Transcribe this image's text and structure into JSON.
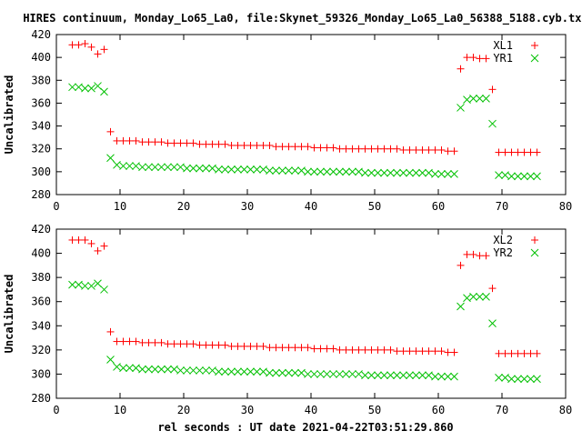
{
  "title": "HIRES continuum, Monday_Lo65_La0, file:Skynet_59326_Monday_Lo65_La0_56388_5188.cyb.txt",
  "xlabel": "rel seconds : UT date 2021-04-22T03:51:29.860",
  "colors": {
    "red": "#ff0000",
    "green": "#00c000",
    "axis": "#000000"
  },
  "chart_data": [
    {
      "type": "scatter",
      "ylabel": "Uncalibrated",
      "xlim": [
        0,
        80
      ],
      "ylim": [
        280,
        420
      ],
      "xticks": [
        0,
        10,
        20,
        30,
        40,
        50,
        60,
        70,
        80
      ],
      "yticks": [
        280,
        300,
        320,
        340,
        360,
        380,
        400,
        420
      ],
      "legend_position": "top-right",
      "series": [
        {
          "name": "XL1",
          "marker": "plus",
          "color": "#ff0000",
          "x": [
            2.5,
            3.5,
            4.5,
            5.5,
            6.5,
            7.5,
            8.5,
            9.5,
            10.5,
            11.5,
            12.5,
            13.5,
            14.5,
            15.5,
            16.5,
            17.5,
            18.5,
            19.5,
            20.5,
            21.5,
            22.5,
            23.5,
            24.5,
            25.5,
            26.5,
            27.5,
            28.5,
            29.5,
            30.5,
            31.5,
            32.5,
            33.5,
            34.5,
            35.5,
            36.5,
            37.5,
            38.5,
            39.5,
            40.5,
            41.5,
            42.5,
            43.5,
            44.5,
            45.5,
            46.5,
            47.5,
            48.5,
            49.5,
            50.5,
            51.5,
            52.5,
            53.5,
            54.5,
            55.5,
            56.5,
            57.5,
            58.5,
            59.5,
            60.5,
            61.5,
            62.5,
            63.5,
            64.5,
            65.5,
            66.5,
            67.5,
            68.5,
            69.5,
            70.5,
            71.5,
            72.5,
            73.5,
            74.5,
            75.5
          ],
          "y": [
            411,
            411,
            412,
            409,
            403,
            407,
            335,
            327,
            327,
            327,
            327,
            326,
            326,
            326,
            326,
            325,
            325,
            325,
            325,
            325,
            324,
            324,
            324,
            324,
            324,
            323,
            323,
            323,
            323,
            323,
            323,
            323,
            322,
            322,
            322,
            322,
            322,
            322,
            321,
            321,
            321,
            321,
            320,
            320,
            320,
            320,
            320,
            320,
            320,
            320,
            320,
            320,
            319,
            319,
            319,
            319,
            319,
            319,
            319,
            318,
            318,
            390,
            400,
            400,
            399,
            399,
            372,
            317,
            317,
            317,
            317,
            317,
            317,
            317
          ]
        },
        {
          "name": "YR1",
          "marker": "cross",
          "color": "#00c000",
          "x": [
            2.5,
            3.5,
            4.5,
            5.5,
            6.5,
            7.5,
            8.5,
            9.5,
            10.5,
            11.5,
            12.5,
            13.5,
            14.5,
            15.5,
            16.5,
            17.5,
            18.5,
            19.5,
            20.5,
            21.5,
            22.5,
            23.5,
            24.5,
            25.5,
            26.5,
            27.5,
            28.5,
            29.5,
            30.5,
            31.5,
            32.5,
            33.5,
            34.5,
            35.5,
            36.5,
            37.5,
            38.5,
            39.5,
            40.5,
            41.5,
            42.5,
            43.5,
            44.5,
            45.5,
            46.5,
            47.5,
            48.5,
            49.5,
            50.5,
            51.5,
            52.5,
            53.5,
            54.5,
            55.5,
            56.5,
            57.5,
            58.5,
            59.5,
            60.5,
            61.5,
            62.5,
            63.5,
            64.5,
            65.5,
            66.5,
            67.5,
            68.5,
            69.5,
            70.5,
            71.5,
            72.5,
            73.5,
            74.5,
            75.5
          ],
          "y": [
            374,
            374,
            373,
            373,
            375,
            370,
            312,
            306,
            305,
            305,
            305,
            304,
            304,
            304,
            304,
            304,
            304,
            304,
            303,
            303,
            303,
            303,
            303,
            302,
            302,
            302,
            302,
            302,
            302,
            302,
            302,
            301,
            301,
            301,
            301,
            301,
            301,
            300,
            300,
            300,
            300,
            300,
            300,
            300,
            300,
            300,
            299,
            299,
            299,
            299,
            299,
            299,
            299,
            299,
            299,
            299,
            299,
            298,
            298,
            298,
            298,
            356,
            363,
            364,
            364,
            364,
            342,
            297,
            297,
            296,
            296,
            296,
            296,
            296
          ]
        }
      ]
    },
    {
      "type": "scatter",
      "ylabel": "Uncalibrated",
      "xlim": [
        0,
        80
      ],
      "ylim": [
        280,
        420
      ],
      "xticks": [
        0,
        10,
        20,
        30,
        40,
        50,
        60,
        70,
        80
      ],
      "yticks": [
        280,
        300,
        320,
        340,
        360,
        380,
        400,
        420
      ],
      "legend_position": "top-right",
      "series": [
        {
          "name": "XL2",
          "marker": "plus",
          "color": "#ff0000",
          "x": [
            2.5,
            3.5,
            4.5,
            5.5,
            6.5,
            7.5,
            8.5,
            9.5,
            10.5,
            11.5,
            12.5,
            13.5,
            14.5,
            15.5,
            16.5,
            17.5,
            18.5,
            19.5,
            20.5,
            21.5,
            22.5,
            23.5,
            24.5,
            25.5,
            26.5,
            27.5,
            28.5,
            29.5,
            30.5,
            31.5,
            32.5,
            33.5,
            34.5,
            35.5,
            36.5,
            37.5,
            38.5,
            39.5,
            40.5,
            41.5,
            42.5,
            43.5,
            44.5,
            45.5,
            46.5,
            47.5,
            48.5,
            49.5,
            50.5,
            51.5,
            52.5,
            53.5,
            54.5,
            55.5,
            56.5,
            57.5,
            58.5,
            59.5,
            60.5,
            61.5,
            62.5,
            63.5,
            64.5,
            65.5,
            66.5,
            67.5,
            68.5,
            69.5,
            70.5,
            71.5,
            72.5,
            73.5,
            74.5,
            75.5
          ],
          "y": [
            411,
            411,
            411,
            408,
            402,
            406,
            335,
            327,
            327,
            327,
            327,
            326,
            326,
            326,
            326,
            325,
            325,
            325,
            325,
            325,
            324,
            324,
            324,
            324,
            324,
            323,
            323,
            323,
            323,
            323,
            323,
            322,
            322,
            322,
            322,
            322,
            322,
            322,
            321,
            321,
            321,
            321,
            320,
            320,
            320,
            320,
            320,
            320,
            320,
            320,
            320,
            319,
            319,
            319,
            319,
            319,
            319,
            319,
            319,
            318,
            318,
            390,
            399,
            399,
            398,
            398,
            371,
            317,
            317,
            317,
            317,
            317,
            317,
            317
          ]
        },
        {
          "name": "YR2",
          "marker": "cross",
          "color": "#00c000",
          "x": [
            2.5,
            3.5,
            4.5,
            5.5,
            6.5,
            7.5,
            8.5,
            9.5,
            10.5,
            11.5,
            12.5,
            13.5,
            14.5,
            15.5,
            16.5,
            17.5,
            18.5,
            19.5,
            20.5,
            21.5,
            22.5,
            23.5,
            24.5,
            25.5,
            26.5,
            27.5,
            28.5,
            29.5,
            30.5,
            31.5,
            32.5,
            33.5,
            34.5,
            35.5,
            36.5,
            37.5,
            38.5,
            39.5,
            40.5,
            41.5,
            42.5,
            43.5,
            44.5,
            45.5,
            46.5,
            47.5,
            48.5,
            49.5,
            50.5,
            51.5,
            52.5,
            53.5,
            54.5,
            55.5,
            56.5,
            57.5,
            58.5,
            59.5,
            60.5,
            61.5,
            62.5,
            63.5,
            64.5,
            65.5,
            66.5,
            67.5,
            68.5,
            69.5,
            70.5,
            71.5,
            72.5,
            73.5,
            74.5,
            75.5
          ],
          "y": [
            374,
            374,
            373,
            373,
            375,
            370,
            312,
            306,
            305,
            305,
            305,
            304,
            304,
            304,
            304,
            304,
            304,
            303,
            303,
            303,
            303,
            303,
            303,
            302,
            302,
            302,
            302,
            302,
            302,
            302,
            302,
            301,
            301,
            301,
            301,
            301,
            301,
            300,
            300,
            300,
            300,
            300,
            300,
            300,
            300,
            300,
            299,
            299,
            299,
            299,
            299,
            299,
            299,
            299,
            299,
            299,
            299,
            298,
            298,
            298,
            298,
            356,
            363,
            364,
            364,
            364,
            342,
            297,
            297,
            296,
            296,
            296,
            296,
            296
          ]
        }
      ]
    }
  ]
}
